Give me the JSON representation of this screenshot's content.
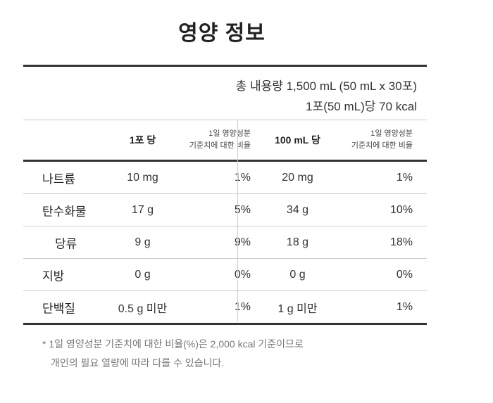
{
  "title": "영양 정보",
  "summary": {
    "total": "총 내용량 1,500 mL (50 mL x 30포)",
    "per_serving": "1포(50 mL)당 70 kcal"
  },
  "headers": {
    "per_pack": "1포 당",
    "pct_line1": "1일 영양성분",
    "pct_line2": "기준치에 대한 비율",
    "per_100ml": "100 mL 당"
  },
  "rows": [
    {
      "name": "나트륨",
      "per_pack": "10 mg",
      "pct_pack": "1%",
      "per_100ml": "20 mg",
      "pct_100ml": "1%"
    },
    {
      "name": "탄수화물",
      "per_pack": "17 g",
      "pct_pack": "5%",
      "per_100ml": "34 g",
      "pct_100ml": "10%"
    },
    {
      "name": "당류",
      "per_pack": "9 g",
      "pct_pack": "9%",
      "per_100ml": "18 g",
      "pct_100ml": "18%"
    },
    {
      "name": "지방",
      "per_pack": "0 g",
      "pct_pack": "0%",
      "per_100ml": "0 g",
      "pct_100ml": "0%"
    },
    {
      "name": "단백질",
      "per_pack": "0.5 g 미만",
      "pct_pack": "1%",
      "per_100ml": "1 g 미만",
      "pct_100ml": "1%"
    }
  ],
  "footnote": {
    "line1": "* 1일 영양성분 기준치에 대한 비율(%)은 2,000 kcal 기준이므로",
    "line2": "개인의 필요 열량에 따라 다를 수 있습니다."
  }
}
